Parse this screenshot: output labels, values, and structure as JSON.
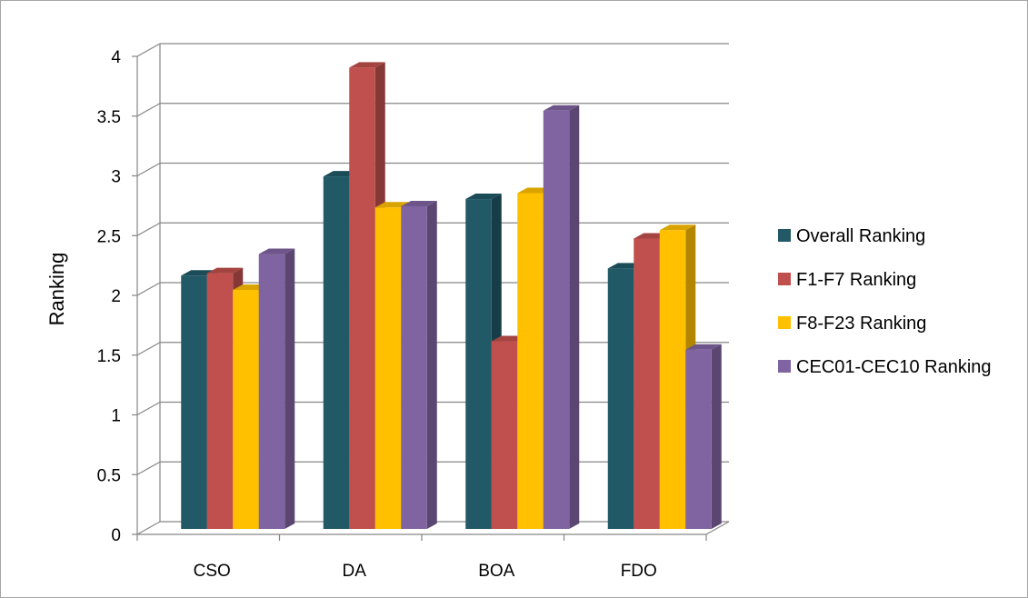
{
  "chart_data": {
    "type": "bar",
    "title": "",
    "xlabel": "",
    "ylabel": "Ranking",
    "ylim": [
      0,
      4
    ],
    "yticks": [
      0,
      0.5,
      1,
      1.5,
      2,
      2.5,
      3,
      3.5,
      4
    ],
    "ytick_labels": [
      "0",
      "0.5",
      "1",
      "1.5",
      "2",
      "2.5",
      "3",
      "3.5",
      "4"
    ],
    "grid": true,
    "style": "3d-clustered-column",
    "legend_position": "right",
    "categories": [
      "CSO",
      "DA",
      "BOA",
      "FDO"
    ],
    "series": [
      {
        "name": "Overall Ranking",
        "color": "#215967",
        "values": [
          2.12,
          2.95,
          2.76,
          2.18
        ]
      },
      {
        "name": "F1-F7 Ranking",
        "color": "#C0504D",
        "values": [
          2.14,
          3.86,
          1.57,
          2.43
        ]
      },
      {
        "name": "F8-F23 Ranking",
        "color": "#FFC000",
        "values": [
          2.0,
          2.69,
          2.81,
          2.5
        ]
      },
      {
        "name": "CEC01-CEC10 Ranking",
        "color": "#8064A2",
        "values": [
          2.3,
          2.7,
          3.5,
          1.5
        ]
      }
    ]
  }
}
